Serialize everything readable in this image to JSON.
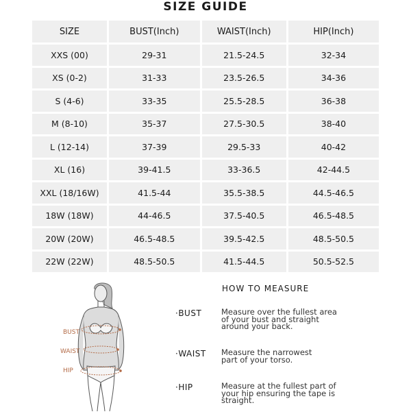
{
  "title": "SIZE GUIDE",
  "table": {
    "headers": [
      "SIZE",
      "BUST(Inch)",
      "WAIST(Inch)",
      "HIP(Inch)"
    ],
    "rows": [
      [
        "XXS (00)",
        "29-31",
        "21.5-24.5",
        "32-34"
      ],
      [
        "XS (0-2)",
        "31-33",
        "23.5-26.5",
        "34-36"
      ],
      [
        "S (4-6)",
        "33-35",
        "25.5-28.5",
        "36-38"
      ],
      [
        "M (8-10)",
        "35-37",
        "27.5-30.5",
        "38-40"
      ],
      [
        "L (12-14)",
        "37-39",
        "29.5-33",
        "40-42"
      ],
      [
        "XL (16)",
        "39-41.5",
        "33-36.5",
        "42-44.5"
      ],
      [
        "XXL (18/16W)",
        "41.5-44",
        "35.5-38.5",
        "44.5-46.5"
      ],
      [
        "18W (18W)",
        "44-46.5",
        "37.5-40.5",
        "46.5-48.5"
      ],
      [
        "20W (20W)",
        "46.5-48.5",
        "39.5-42.5",
        "48.5-50.5"
      ],
      [
        "22W (22W)",
        "48.5-50.5",
        "41.5-44.5",
        "50.5-52.5"
      ]
    ]
  },
  "figure": {
    "labels": {
      "bust": "BUST",
      "waist": "WAIST",
      "hip": "HIP"
    },
    "accent": "#b36b47"
  },
  "how_to_measure": {
    "title": "HOW TO MEASURE",
    "items": [
      {
        "key": "·BUST",
        "desc": [
          "Measure over the fullest area",
          "of your bust and straight",
          "around your back."
        ]
      },
      {
        "key": "·WAIST",
        "desc": [
          "Measure the narrowest",
          "part of your torso."
        ]
      },
      {
        "key": "·HIP",
        "desc": [
          "Measure at the fullest part of",
          "your hip ensuring the tape is",
          "straight."
        ]
      }
    ]
  }
}
